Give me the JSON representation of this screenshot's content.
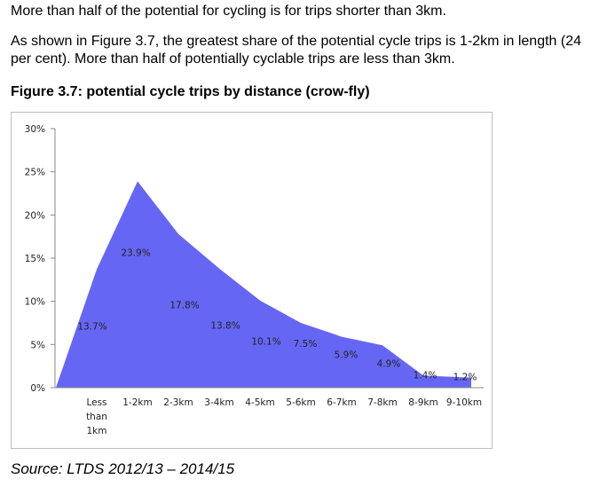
{
  "text": {
    "intro": "More than half of the potential for cycling is for trips shorter than 3km.",
    "paragraph": "As shown in Figure 3.7, the greatest share of the potential cycle trips is 1-2km in length (24 per cent). More than half of potentially cyclable trips are less than 3km.",
    "figure_title": "Figure 3.7: potential cycle trips by distance (crow-fly)",
    "source": "Source: LTDS 2012/13 – 2014/15"
  },
  "chart_data": {
    "type": "area",
    "categories": [
      "Less than 1km",
      "1-2km",
      "2-3km",
      "3-4km",
      "4-5km",
      "5-6km",
      "6-7km",
      "7-8km",
      "8-9km",
      "9-10km"
    ],
    "category_label_lines": [
      [
        "Less",
        "than",
        "1km"
      ],
      [
        "1-2km"
      ],
      [
        "2-3km"
      ],
      [
        "3-4km"
      ],
      [
        "4-5km"
      ],
      [
        "5-6km"
      ],
      [
        "6-7km"
      ],
      [
        "7-8km"
      ],
      [
        "8-9km"
      ],
      [
        "9-10km"
      ]
    ],
    "values": [
      13.7,
      23.9,
      17.8,
      13.8,
      10.1,
      7.5,
      5.9,
      4.9,
      1.4,
      1.2
    ],
    "data_labels": [
      "13.7%",
      "23.9%",
      "17.8%",
      "13.8%",
      "10.1%",
      "7.5%",
      "5.9%",
      "4.9%",
      "1.4%",
      "1.2%"
    ],
    "y_ticks": [
      "0%",
      "5%",
      "10%",
      "15%",
      "20%",
      "25%",
      "30%"
    ],
    "ylim": [
      0,
      30
    ],
    "fill_color": "#6666f5",
    "grid": false,
    "legend": "none"
  }
}
